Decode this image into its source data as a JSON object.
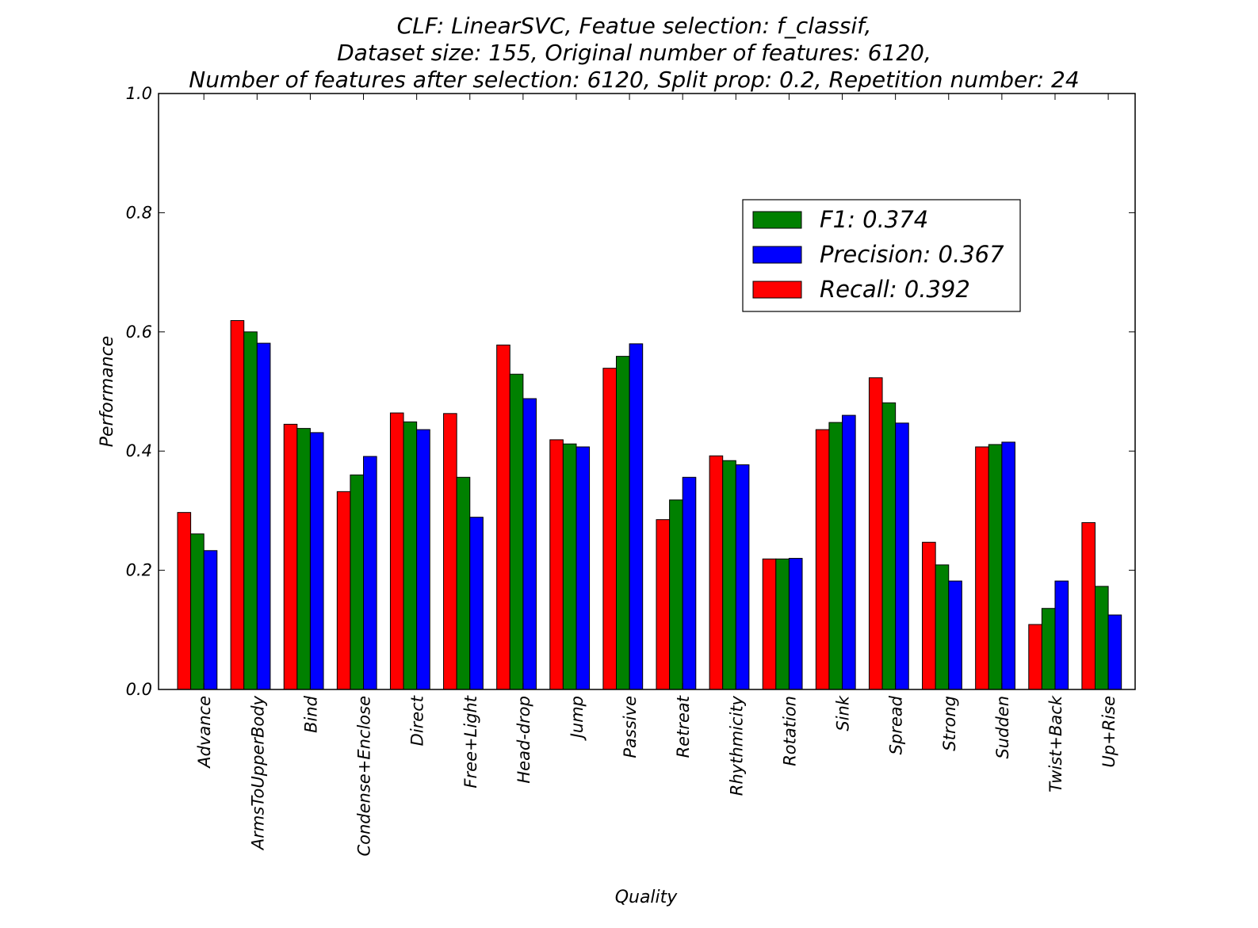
{
  "chart_data": {
    "type": "bar",
    "title_lines": [
      "CLF: LinearSVC, Featue selection: f_classif,",
      "Dataset size: 155, Original number of features: 6120,",
      "Number of features after selection: 6120, Split prop: 0.2, Repetition number: 24"
    ],
    "xlabel": "Quality",
    "ylabel": "Performance",
    "ylim": [
      0.0,
      1.0
    ],
    "yticks": [
      "0.0",
      "0.2",
      "0.4",
      "0.6",
      "0.8",
      "1.0"
    ],
    "grid": false,
    "legend_position": "upper right",
    "categories": [
      "Advance",
      "ArmsToUpperBody",
      "Bind",
      "Condense+Enclose",
      "Direct",
      "Free+Light",
      "Head-drop",
      "Jump",
      "Passive",
      "Retreat",
      "Rhythmicity",
      "Rotation",
      "Sink",
      "Spread",
      "Strong",
      "Sudden",
      "Twist+Back",
      "Up+Rise"
    ],
    "series": [
      {
        "name": "Recall",
        "legend_label": "Recall: 0.392",
        "color": "#ff0000",
        "values": [
          0.297,
          0.619,
          0.445,
          0.332,
          0.464,
          0.463,
          0.578,
          0.419,
          0.539,
          0.285,
          0.392,
          0.219,
          0.436,
          0.523,
          0.247,
          0.407,
          0.109,
          0.28
        ]
      },
      {
        "name": "F1",
        "legend_label": "F1: 0.374",
        "color": "#008000",
        "values": [
          0.261,
          0.6,
          0.438,
          0.36,
          0.449,
          0.356,
          0.529,
          0.412,
          0.559,
          0.318,
          0.384,
          0.219,
          0.448,
          0.481,
          0.209,
          0.411,
          0.136,
          0.173
        ]
      },
      {
        "name": "Precision",
        "legend_label": "Precision: 0.367",
        "color": "#0000ff",
        "values": [
          0.233,
          0.581,
          0.431,
          0.391,
          0.436,
          0.289,
          0.488,
          0.407,
          0.58,
          0.356,
          0.377,
          0.22,
          0.46,
          0.447,
          0.182,
          0.415,
          0.182,
          0.125
        ]
      }
    ],
    "legend_order": [
      "F1",
      "Precision",
      "Recall"
    ]
  }
}
